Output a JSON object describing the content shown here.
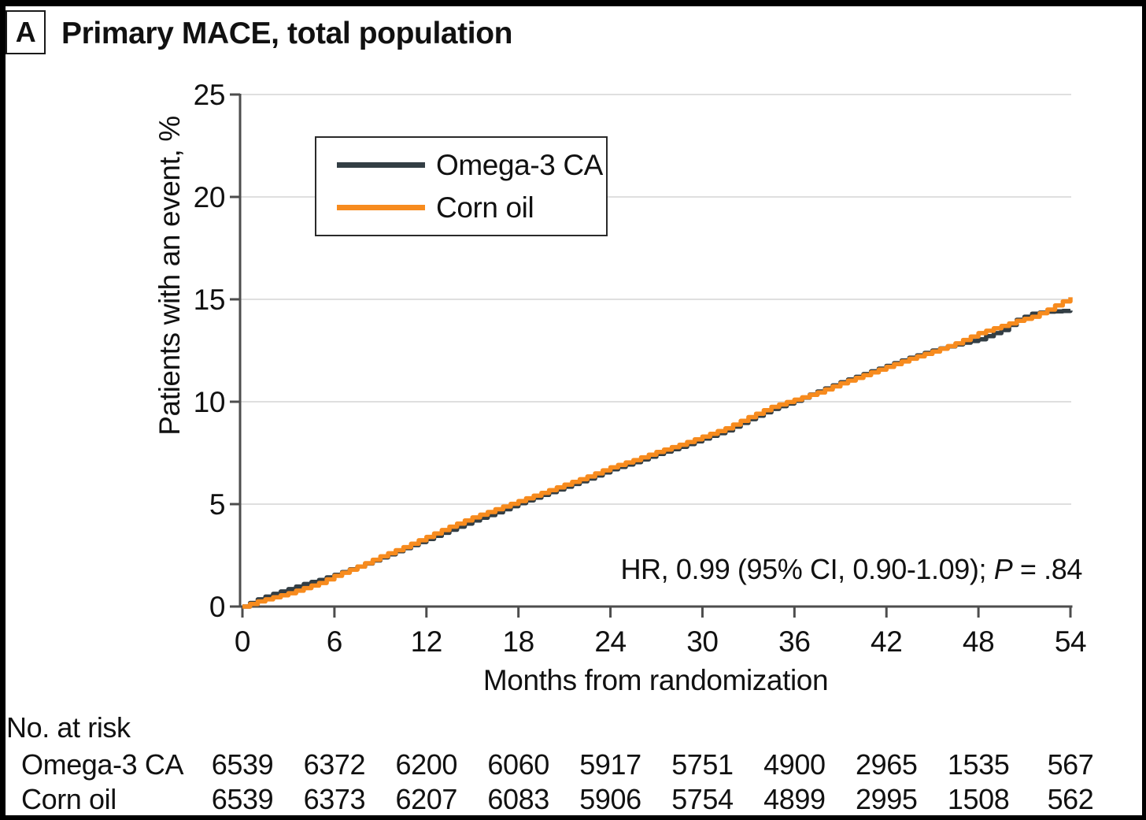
{
  "panel": {
    "label": "A",
    "title": "Primary MACE, total population"
  },
  "chart_data": {
    "type": "line",
    "title": "Primary MACE, total population",
    "xlabel": "Months from randomization",
    "ylabel": "Patients with an event, %",
    "xlim": [
      0,
      54
    ],
    "ylim": [
      0,
      25
    ],
    "xticks": [
      0,
      6,
      12,
      18,
      24,
      30,
      36,
      42,
      48,
      54
    ],
    "yticks": [
      0,
      5,
      10,
      15,
      20,
      25
    ],
    "grid": "horizontal-light",
    "legend_position": "upper-left-inside",
    "annotation": {
      "text": "HR, 0.99 (95% CI, 0.90-1.09); ",
      "p_italic": "P",
      "p_suffix": " = .84"
    },
    "colors": {
      "axis": "#4d4d4d",
      "grid": "#dfdfdf",
      "text": "#111111"
    },
    "series": [
      {
        "name": "Omega-3 CA",
        "color": "#333e44",
        "x": [
          0,
          1,
          2,
          3,
          4,
          5,
          6,
          7.5,
          9,
          10.5,
          12,
          13.5,
          15,
          16.5,
          18,
          19.5,
          21,
          22.5,
          24,
          25.5,
          27,
          28.5,
          30,
          31.5,
          33,
          34.5,
          36,
          37.5,
          39,
          40.5,
          42,
          43.5,
          45,
          46.5,
          48,
          49.5,
          50.5,
          51.5,
          52.5,
          54
        ],
        "y": [
          0,
          0.35,
          0.62,
          0.85,
          1.1,
          1.3,
          1.55,
          1.95,
          2.4,
          2.85,
          3.3,
          3.75,
          4.2,
          4.6,
          5.05,
          5.45,
          5.85,
          6.25,
          6.7,
          7.05,
          7.45,
          7.8,
          8.2,
          8.6,
          9.15,
          9.65,
          10.05,
          10.5,
          10.95,
          11.35,
          11.75,
          12.15,
          12.5,
          12.8,
          13.05,
          13.5,
          14.0,
          14.3,
          14.4,
          14.45
        ]
      },
      {
        "name": "Corn oil",
        "color": "#f78b1e",
        "x": [
          0,
          1,
          2,
          3,
          4,
          5,
          6,
          7.5,
          9,
          10.5,
          12,
          13.5,
          15,
          16.5,
          18,
          19.5,
          21,
          22.5,
          24,
          25.5,
          27,
          28.5,
          30,
          31.5,
          33,
          34.5,
          36,
          37.5,
          39,
          40.5,
          42,
          43.5,
          45,
          46.5,
          48,
          49.5,
          50.5,
          51.5,
          52.5,
          54
        ],
        "y": [
          0,
          0.25,
          0.45,
          0.65,
          0.9,
          1.15,
          1.5,
          1.95,
          2.45,
          2.9,
          3.4,
          3.9,
          4.35,
          4.75,
          5.15,
          5.55,
          5.95,
          6.35,
          6.8,
          7.15,
          7.55,
          7.9,
          8.3,
          8.7,
          9.25,
          9.75,
          10.1,
          10.45,
          10.9,
          11.3,
          11.7,
          12.1,
          12.45,
          12.85,
          13.35,
          13.7,
          13.95,
          14.15,
          14.5,
          15.1
        ]
      }
    ],
    "risk_table": {
      "title": "No. at risk",
      "timepoints": [
        0,
        6,
        12,
        18,
        24,
        30,
        36,
        42,
        48,
        54
      ],
      "rows": [
        {
          "name": "Omega-3 CA",
          "counts": [
            6539,
            6372,
            6200,
            6060,
            5917,
            5751,
            4900,
            2965,
            1535,
            567
          ]
        },
        {
          "name": "Corn oil",
          "counts": [
            6539,
            6373,
            6207,
            6083,
            5906,
            5754,
            4899,
            2995,
            1508,
            562
          ]
        }
      ]
    }
  }
}
